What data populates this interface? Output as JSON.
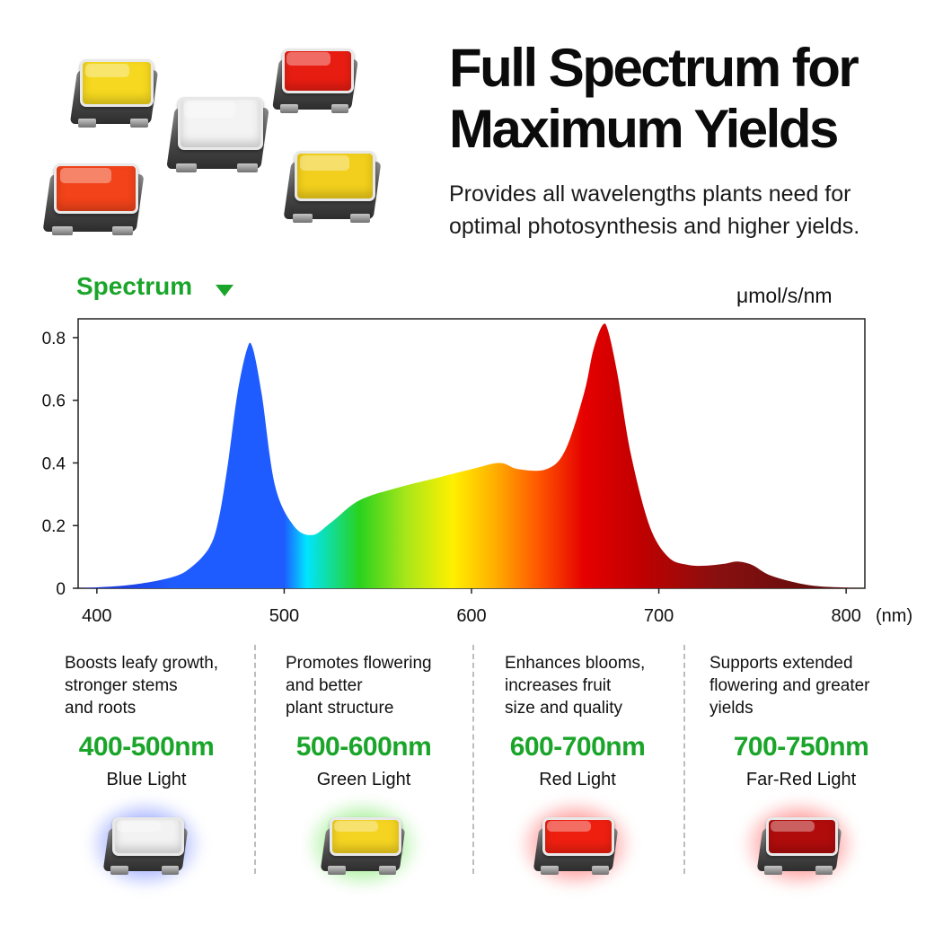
{
  "header": {
    "title_line1": "Full Spectrum for",
    "title_line2": "Maximum Yields",
    "subtitle_line1": "Provides all wavelengths plants need for",
    "subtitle_line2": "optimal photosynthesis and higher yields."
  },
  "chart_header": {
    "label": "Spectrum",
    "unit": "μmol/s/nm"
  },
  "chart_data": {
    "type": "area",
    "title": "",
    "xlabel": "(nm)",
    "ylabel": "μmol/s/nm",
    "xlim": [
      390,
      810
    ],
    "ylim": [
      0,
      0.86
    ],
    "x_ticks": [
      400,
      500,
      600,
      700,
      800
    ],
    "y_ticks": [
      0,
      0.2,
      0.4,
      0.6,
      0.8
    ],
    "y_tick_labels": [
      "0",
      "0.2",
      "0.4",
      "0.6",
      "0.8"
    ],
    "grid": false,
    "series": [
      {
        "x": [
          390,
          400,
          420,
          440,
          450,
          460,
          465,
          470,
          475,
          480,
          483,
          488,
          495,
          505,
          515,
          525,
          540,
          560,
          580,
          600,
          615,
          625,
          640,
          650,
          660,
          665,
          670,
          673,
          678,
          685,
          695,
          705,
          715,
          725,
          735,
          742,
          750,
          760,
          780,
          800,
          810
        ],
        "y": [
          0.0,
          0.003,
          0.012,
          0.035,
          0.065,
          0.13,
          0.22,
          0.4,
          0.62,
          0.76,
          0.77,
          0.62,
          0.33,
          0.2,
          0.17,
          0.21,
          0.28,
          0.32,
          0.35,
          0.38,
          0.4,
          0.38,
          0.38,
          0.44,
          0.62,
          0.76,
          0.84,
          0.82,
          0.68,
          0.43,
          0.2,
          0.1,
          0.075,
          0.072,
          0.078,
          0.085,
          0.074,
          0.04,
          0.01,
          0.002,
          0.0
        ]
      }
    ],
    "colors": [
      "#1a23c8",
      "#1e5cff",
      "#00e5ff",
      "#28d21e",
      "#a8e61a",
      "#fff000",
      "#ffb000",
      "#ff5a00",
      "#e60000",
      "#c00000",
      "#8a0f0f",
      "#5a0e0e"
    ]
  },
  "bands": [
    {
      "desc_lines": [
        "Boosts leafy growth,",
        "stronger stems",
        "and roots"
      ],
      "range": "400-500nm",
      "name": "Blue Light",
      "lens_color": "#f2f2f2",
      "glow_color": "#3f5bff"
    },
    {
      "desc_lines": [
        "Promotes flowering",
        "and better",
        "plant structure"
      ],
      "range": "500-600nm",
      "name": "Green Light",
      "lens_color": "#f4d321",
      "glow_color": "#45e02a"
    },
    {
      "desc_lines": [
        "Enhances blooms,",
        "increases fruit",
        "size and quality"
      ],
      "range": "600-700nm",
      "name": "Red Light",
      "lens_color": "#ef1f10",
      "glow_color": "#ff2a2a"
    },
    {
      "desc_lines": [
        "Supports extended",
        "flowering and greater",
        "yields"
      ],
      "range": "700-750nm",
      "name": "Far-Red Light",
      "lens_color": "#b00c0c",
      "glow_color": "#ff2a2a"
    }
  ],
  "top_leds": [
    {
      "name": "yellow",
      "color": "#f5d81f"
    },
    {
      "name": "red",
      "color": "#e81d12"
    },
    {
      "name": "white",
      "color": "#f3f3f3"
    },
    {
      "name": "orange",
      "color": "#f2431a"
    },
    {
      "name": "yellow",
      "color": "#f1cf1c"
    }
  ]
}
